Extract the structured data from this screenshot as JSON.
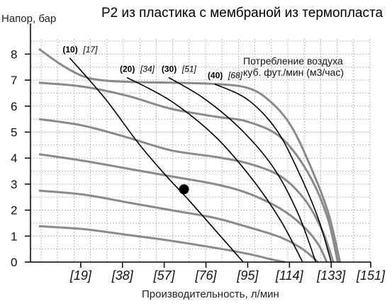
{
  "chart_data": {
    "type": "line",
    "title": "P2 из пластика с мембраной из термопласта",
    "ylabel": "Напор, бар",
    "xlabel": "Производительность, л/мин",
    "x_tick_labels": [
      "[19]",
      "[38]",
      "[57]",
      "[76]",
      "[95]",
      "[114]",
      "[133]",
      "[151]"
    ],
    "x_tick_values": [
      19,
      38,
      57,
      76,
      95,
      114,
      133,
      151
    ],
    "y_ticks": [
      0,
      1,
      2,
      3,
      4,
      5,
      6,
      7,
      8
    ],
    "xlim": [
      0,
      151
    ],
    "ylim": [
      0,
      8.5
    ],
    "grid": true,
    "legend_title": "Потребление воздуха\nкуб. фут./мин (м3/час)",
    "performance_curves": [
      {
        "points": [
          [
            0,
            8.2
          ],
          [
            10,
            7.6
          ],
          [
            20,
            7.15
          ],
          [
            30,
            6.98
          ],
          [
            45,
            6.92
          ],
          [
            60,
            6.9
          ],
          [
            80,
            6.85
          ],
          [
            95,
            6.7
          ],
          [
            105,
            6.2
          ],
          [
            115,
            5.2
          ],
          [
            125,
            3.4
          ],
          [
            132,
            1.8
          ],
          [
            137,
            0
          ]
        ]
      },
      {
        "points": [
          [
            0,
            6.9
          ],
          [
            20,
            6.75
          ],
          [
            40,
            6.4
          ],
          [
            60,
            5.9
          ],
          [
            80,
            5.6
          ],
          [
            95,
            5.4
          ],
          [
            110,
            4.8
          ],
          [
            122,
            3.5
          ],
          [
            131,
            1.8
          ],
          [
            136,
            0
          ]
        ]
      },
      {
        "points": [
          [
            0,
            5.5
          ],
          [
            20,
            5.25
          ],
          [
            40,
            4.8
          ],
          [
            60,
            4.3
          ],
          [
            80,
            4.05
          ],
          [
            95,
            3.8
          ],
          [
            110,
            3.3
          ],
          [
            121,
            2.4
          ],
          [
            129,
            1.2
          ],
          [
            134,
            0
          ]
        ]
      },
      {
        "points": [
          [
            0,
            4.15
          ],
          [
            20,
            3.9
          ],
          [
            40,
            3.6
          ],
          [
            60,
            3.3
          ],
          [
            80,
            3.0
          ],
          [
            95,
            2.65
          ],
          [
            110,
            2.05
          ],
          [
            120,
            1.4
          ],
          [
            127,
            0.7
          ],
          [
            131,
            0
          ]
        ]
      },
      {
        "points": [
          [
            0,
            2.75
          ],
          [
            20,
            2.6
          ],
          [
            40,
            2.3
          ],
          [
            60,
            2.0
          ],
          [
            80,
            1.7
          ],
          [
            95,
            1.35
          ],
          [
            110,
            0.95
          ],
          [
            120,
            0.5
          ],
          [
            127,
            0
          ]
        ]
      },
      {
        "points": [
          [
            0,
            1.38
          ],
          [
            20,
            1.27
          ],
          [
            40,
            1.05
          ],
          [
            60,
            0.82
          ],
          [
            80,
            0.55
          ],
          [
            95,
            0.32
          ],
          [
            105,
            0.12
          ],
          [
            112,
            0
          ]
        ]
      }
    ],
    "air_consumption_curves": [
      {
        "label": "(10)",
        "alt_label": "[17]",
        "points": [
          [
            14,
            7.85
          ],
          [
            30,
            6.3
          ],
          [
            45,
            4.6
          ],
          [
            57,
            3.4
          ],
          [
            68,
            2.4
          ],
          [
            80,
            1.25
          ],
          [
            93,
            0
          ]
        ]
      },
      {
        "label": "(20)",
        "alt_label": "[34]",
        "points": [
          [
            40,
            7.1
          ],
          [
            60,
            6.2
          ],
          [
            80,
            4.85
          ],
          [
            97,
            3.2
          ],
          [
            110,
            1.6
          ],
          [
            120,
            0
          ]
        ]
      },
      {
        "label": "(30)",
        "alt_label": "[51]",
        "points": [
          [
            59,
            7.1
          ],
          [
            75,
            6.3
          ],
          [
            92,
            5.1
          ],
          [
            107,
            3.6
          ],
          [
            118,
            1.85
          ],
          [
            126,
            0
          ]
        ]
      },
      {
        "label": "(40)",
        "alt_label": "[68]",
        "points": [
          [
            80,
            6.85
          ],
          [
            95,
            6.25
          ],
          [
            108,
            5.1
          ],
          [
            118,
            3.5
          ],
          [
            127,
            1.7
          ],
          [
            133,
            0
          ]
        ]
      }
    ],
    "operating_point": {
      "x": 66,
      "y": 2.8
    }
  }
}
